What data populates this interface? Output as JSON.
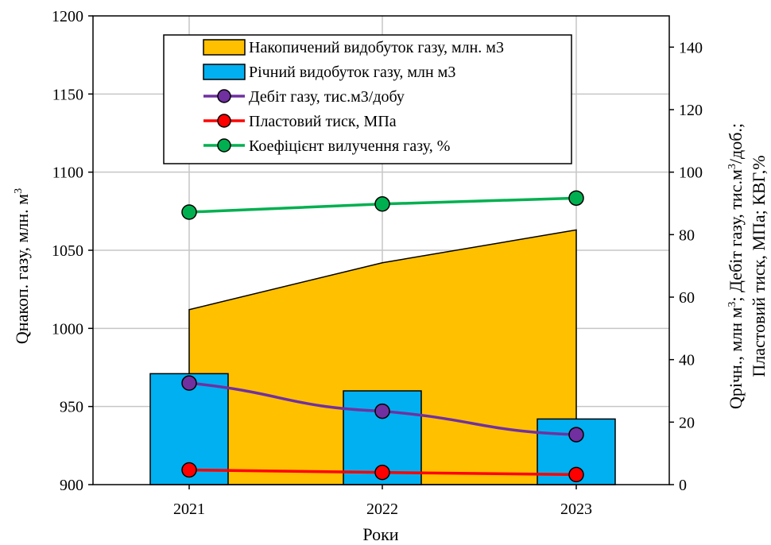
{
  "chart_data": {
    "type": "combo",
    "categories": [
      "2021",
      "2022",
      "2023"
    ],
    "xlabel": "Роки",
    "ylabel_left": "Qнакоп. газу, млн. м³",
    "ylabel_left_parts": [
      "Qнакоп. газу, млн. м",
      "3"
    ],
    "ylabel_right_line1": "Qрічн., млн м³; Дебіт газу, тис.м³/доб.;",
    "ylabel_right_line1_parts": [
      "Qрічн., млн м",
      "3",
      "; Дебіт газу, тис.м",
      "3",
      "/доб.;"
    ],
    "ylabel_right_line2": "Пластовий тиск, МПа; КВГ,%",
    "ylim_left": [
      900,
      1200
    ],
    "yticks_left": [
      900,
      950,
      1000,
      1050,
      1100,
      1150,
      1200
    ],
    "ylim_right": [
      0,
      150
    ],
    "yticks_right": [
      0,
      20,
      40,
      60,
      80,
      100,
      120,
      140
    ],
    "grid": true,
    "legend_position": "top-center",
    "series": [
      {
        "name": "Накопичений видобуток газу, млн. м3",
        "kind": "area",
        "axis": "left",
        "color": "#FFC000",
        "values": [
          1012,
          1042,
          1063
        ]
      },
      {
        "name": "Річний видобуток газу, млн м3",
        "kind": "bar",
        "axis": "right",
        "color": "#00B0F0",
        "values": [
          35.5,
          30,
          21
        ]
      },
      {
        "name": "Дебіт газу, тис.м3/добу",
        "kind": "line",
        "axis": "right",
        "color": "#7030A0",
        "values": [
          32.5,
          23.5,
          16
        ]
      },
      {
        "name": "Пластовий тиск, МПа",
        "kind": "line",
        "axis": "right",
        "color": "#FF0000",
        "values": [
          4.7,
          3.9,
          3.2
        ]
      },
      {
        "name": "Коефіцієнт вилучення газу, %",
        "kind": "line",
        "axis": "right",
        "color": "#00B050",
        "values": [
          87.2,
          89.8,
          91.7
        ]
      }
    ]
  }
}
